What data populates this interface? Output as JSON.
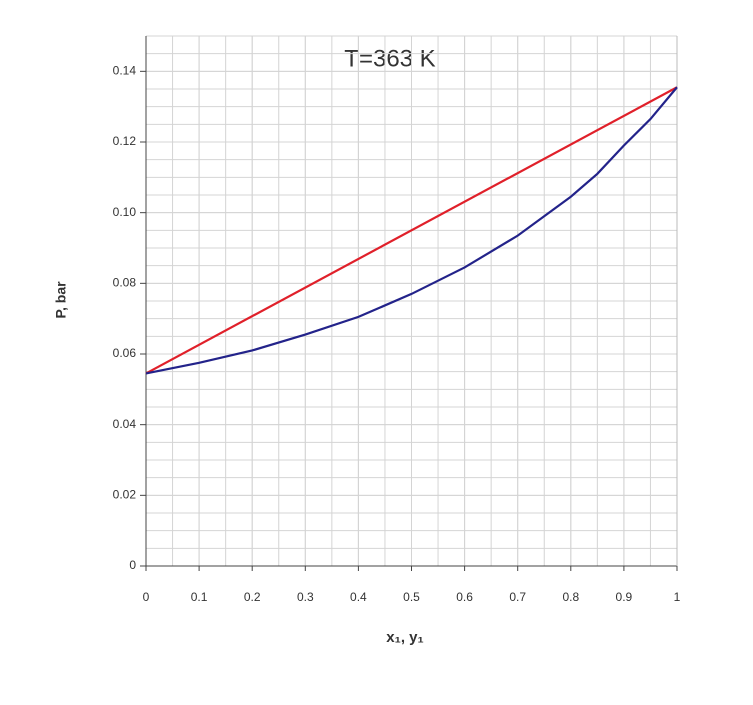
{
  "chart_data": {
    "type": "line",
    "title": "T=363 K",
    "x_label": "x₁, y₁",
    "y_label": "P, bar",
    "xlim": [
      0,
      1
    ],
    "ylim": [
      0,
      0.15
    ],
    "xticks": [
      0,
      0.1,
      0.2,
      0.3,
      0.4,
      0.5,
      0.6,
      0.7,
      0.8,
      0.9,
      1
    ],
    "yticks": [
      0,
      0.02,
      0.04,
      0.06,
      0.08,
      {
        "value": 0.1,
        "label": "0.10"
      },
      0.12,
      0.14
    ],
    "grid": true,
    "series": [
      {
        "color": "#e0202a",
        "x": [
          0,
          1
        ],
        "values": [
          0.0545,
          0.1355
        ]
      },
      {
        "color": "#23238a",
        "x": [
          0,
          0.1,
          0.2,
          0.3,
          0.4,
          0.5,
          0.6,
          0.7,
          0.8,
          0.85,
          0.9,
          0.95,
          1
        ],
        "values": [
          0.0545,
          0.0575,
          0.061,
          0.0655,
          0.0705,
          0.077,
          0.0845,
          0.0935,
          0.1045,
          0.111,
          0.119,
          0.1265,
          0.1355
        ]
      }
    ]
  }
}
